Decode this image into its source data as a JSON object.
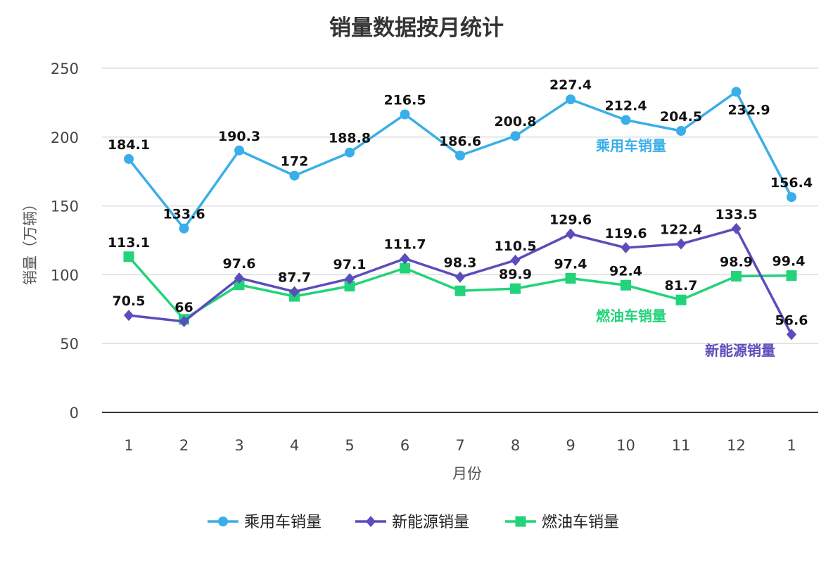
{
  "chart_data": {
    "type": "line",
    "title": "销量数据按月统计",
    "xlabel": "月份",
    "ylabel": "销量（万辆）",
    "ylim": [
      0,
      250
    ],
    "yticks": [
      0,
      50,
      100,
      150,
      200,
      250
    ],
    "grid": true,
    "legend": "bottom",
    "categories": [
      "1",
      "2",
      "3",
      "4",
      "5",
      "6",
      "7",
      "8",
      "9",
      "10",
      "11",
      "12",
      "1"
    ],
    "series": [
      {
        "name": "乘用车销量",
        "color": "#3aaee8",
        "marker": "circle",
        "values": [
          184.1,
          133.6,
          190.3,
          172,
          188.8,
          216.5,
          186.6,
          200.8,
          227.4,
          212.4,
          204.5,
          232.9,
          156.4
        ],
        "labels": [
          "184.1",
          "133.6",
          "190.3",
          "172",
          "188.8",
          "216.5",
          "186.6",
          "200.8",
          "227.4",
          "212.4",
          "204.5",
          "232.9",
          "156.4"
        ]
      },
      {
        "name": "新能源销量",
        "color": "#5b4dbb",
        "marker": "diamond",
        "values": [
          70.5,
          66,
          97.6,
          87.7,
          97.1,
          111.7,
          98.3,
          110.5,
          129.6,
          119.6,
          122.4,
          133.5,
          56.6
        ],
        "labels": [
          "70.5",
          "66",
          "97.6",
          "87.7",
          "97.1",
          "111.7",
          "98.3",
          "110.5",
          "129.6",
          "119.6",
          "122.4",
          "133.5",
          "56.6"
        ]
      },
      {
        "name": "燃油车销量",
        "color": "#22d37a",
        "marker": "square",
        "values": [
          113.1,
          67.6,
          92.7,
          84.3,
          91.7,
          104.8,
          88.3,
          89.9,
          97.4,
          92.4,
          81.7,
          98.9,
          99.4
        ],
        "labels": [
          "113.1",
          null,
          null,
          null,
          null,
          null,
          null,
          "89.9",
          "97.4",
          "92.4",
          "81.7",
          "98.9",
          "99.4"
        ]
      }
    ]
  }
}
